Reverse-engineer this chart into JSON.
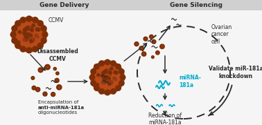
{
  "bg_color": "#f5f5f5",
  "header_color": "#d0d0d0",
  "header_left_text": "Gene Delivery",
  "header_right_text": "Gene Silencing",
  "ccmv_color": "#7B2E08",
  "ccmv_color2": "#B84A18",
  "ccmv_color3": "#953A12",
  "cyan_color": "#00AACC",
  "dark_color": "#2a2a2a",
  "arrow_color": "#2a2a2a",
  "label_encapsulation_normal": "Encapsulation of\n",
  "label_encapsulation_bold": "anti-miRNA-181a",
  "label_encapsulation_end": "\noligonucleotides",
  "label_ccmv": "CCMV",
  "label_disassembled": "Disassembled\nCCMV",
  "label_ovarian": "Ovarian\ncancer\ncell",
  "label_mirna": "miRNA-\n181a",
  "label_reduction": "Reduction of\nmiRNA-181a",
  "label_validate": "Validate miR-181a\nknockdown",
  "figw": 3.78,
  "figh": 1.81,
  "dpi": 100
}
